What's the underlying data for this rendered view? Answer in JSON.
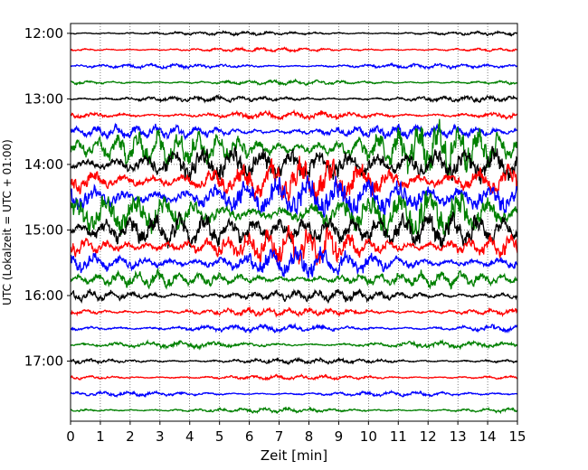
{
  "chart_data": {
    "type": "line",
    "title": "",
    "xlabel": "Zeit  [min]",
    "ylabel": "UTC (Lokalzeit = UTC + 01:00)",
    "xlim": [
      0,
      15
    ],
    "ylim": [
      "17:55",
      "11:51"
    ],
    "x_ticks": [
      "0",
      "1",
      "2",
      "3",
      "4",
      "5",
      "6",
      "7",
      "8",
      "9",
      "10",
      "11",
      "12",
      "13",
      "14",
      "15"
    ],
    "y_ticks": [
      "12:00",
      "13:00",
      "14:00",
      "15:00",
      "16:00",
      "17:00"
    ],
    "grid": true,
    "trace_interval_minutes": 15,
    "trace_colors": [
      "#000000",
      "#ff0000",
      "#0000ff",
      "#008000"
    ],
    "traces": [
      {
        "start": "12:00",
        "color": "#000000",
        "activity": 0.3
      },
      {
        "start": "12:15",
        "color": "#ff0000",
        "activity": 0.3
      },
      {
        "start": "12:30",
        "color": "#0000ff",
        "activity": 0.35
      },
      {
        "start": "12:45",
        "color": "#008000",
        "activity": 0.35
      },
      {
        "start": "13:00",
        "color": "#000000",
        "activity": 0.45
      },
      {
        "start": "13:15",
        "color": "#ff0000",
        "activity": 0.6
      },
      {
        "start": "13:30",
        "color": "#0000ff",
        "activity": 1.0
      },
      {
        "start": "13:45",
        "color": "#008000",
        "activity": 2.6
      },
      {
        "start": "14:00",
        "color": "#000000",
        "activity": 2.4
      },
      {
        "start": "14:15",
        "color": "#ff0000",
        "activity": 2.6
      },
      {
        "start": "14:30",
        "color": "#0000ff",
        "activity": 2.8
      },
      {
        "start": "14:45",
        "color": "#008000",
        "activity": 2.8
      },
      {
        "start": "15:00",
        "color": "#000000",
        "activity": 2.4
      },
      {
        "start": "15:15",
        "color": "#ff0000",
        "activity": 2.0
      },
      {
        "start": "15:30",
        "color": "#0000ff",
        "activity": 1.6
      },
      {
        "start": "15:45",
        "color": "#008000",
        "activity": 1.2
      },
      {
        "start": "16:00",
        "color": "#000000",
        "activity": 0.9
      },
      {
        "start": "16:15",
        "color": "#ff0000",
        "activity": 0.6
      },
      {
        "start": "16:30",
        "color": "#0000ff",
        "activity": 0.55
      },
      {
        "start": "16:45",
        "color": "#008000",
        "activity": 0.5
      },
      {
        "start": "17:00",
        "color": "#000000",
        "activity": 0.4
      },
      {
        "start": "17:15",
        "color": "#ff0000",
        "activity": 0.35
      },
      {
        "start": "17:30",
        "color": "#0000ff",
        "activity": 0.35
      },
      {
        "start": "17:45",
        "color": "#008000",
        "activity": 0.35
      }
    ]
  }
}
